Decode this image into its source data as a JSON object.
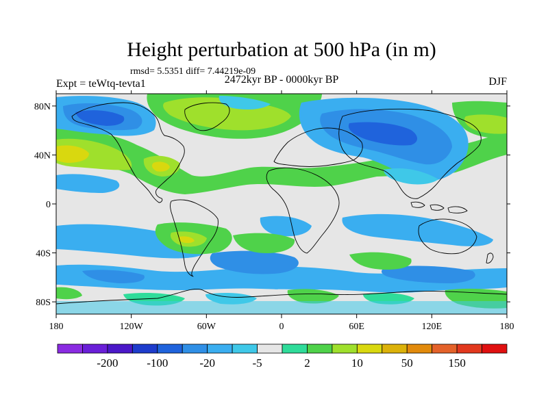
{
  "title": "Height perturbation at 500 hPa (in m)",
  "stats_text": "rmsd= 5.5351  diff= 7.44219e-09",
  "left_label": "Expt = teWtq-tevta1",
  "center_label": "2472kyr BP - 0000kyr BP",
  "right_label": "DJF",
  "lon_ticks": [
    "180",
    "120W",
    "60W",
    "0",
    "60E",
    "120E",
    "180"
  ],
  "lat_ticks": [
    "80N",
    "40N",
    "0",
    "40S",
    "80S"
  ],
  "colorbar": {
    "colors": [
      "#8a2be2",
      "#6a1fd8",
      "#4b18c8",
      "#1e3ccc",
      "#1f63dc",
      "#2f8fe6",
      "#3aaef0",
      "#3fc8e8",
      "#e6e6e6",
      "#2fdc9a",
      "#4fd24a",
      "#9fe02c",
      "#d9d80f",
      "#dcb20a",
      "#e28a0b",
      "#e4622a",
      "#e2381e",
      "#e01010"
    ],
    "labels": [
      "-200",
      "-100",
      "-20",
      "-5",
      "2",
      "10",
      "50",
      "150"
    ]
  }
}
